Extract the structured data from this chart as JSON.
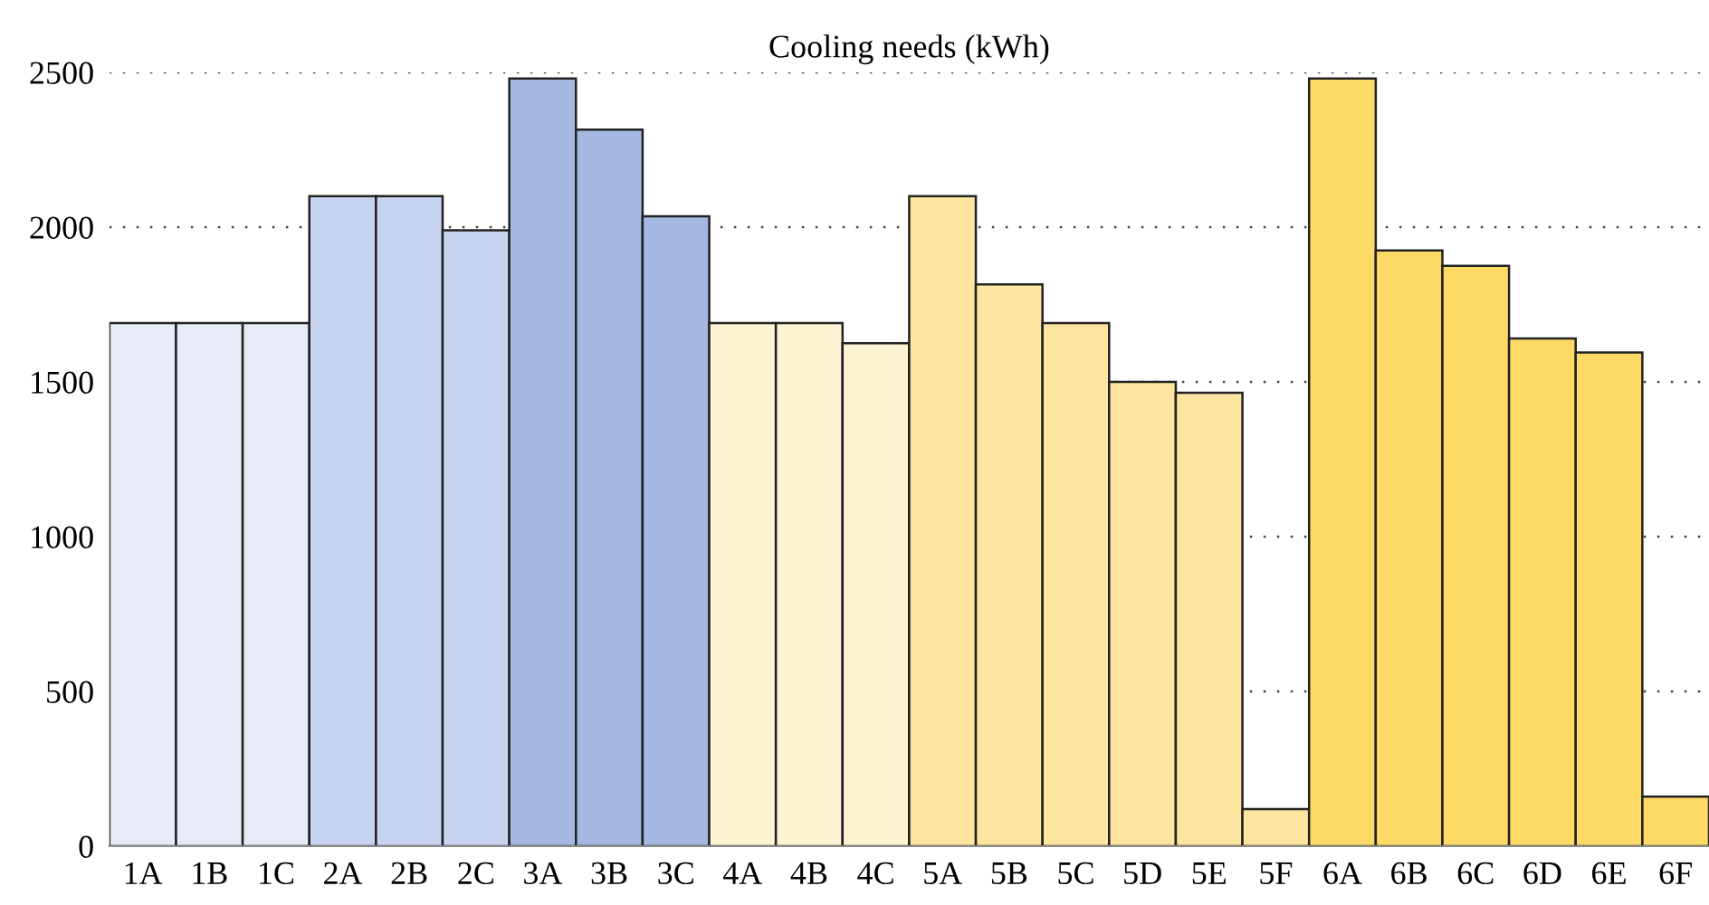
{
  "chart_data": {
    "type": "bar",
    "title": "Cooling needs (kWh)",
    "categories": [
      "1A",
      "1B",
      "1C",
      "2A",
      "2B",
      "2C",
      "3A",
      "3B",
      "3C",
      "4A",
      "4B",
      "4C",
      "5A",
      "5B",
      "5C",
      "5D",
      "5E",
      "5F",
      "6A",
      "6B",
      "6C",
      "6D",
      "6E",
      "6F"
    ],
    "values": [
      1690,
      1690,
      1690,
      2100,
      2100,
      1990,
      2480,
      2315,
      2035,
      1690,
      1690,
      1625,
      2100,
      1815,
      1690,
      1500,
      1465,
      120,
      2480,
      1925,
      1875,
      1640,
      1595,
      160
    ],
    "colors": [
      "#e6ebf7",
      "#e6ebf7",
      "#e6ebf7",
      "#c8d5f0",
      "#c8d5f0",
      "#c8d5f0",
      "#a5b8e2",
      "#a5b8e2",
      "#a5b8e2",
      "#fdf3d3",
      "#fdf3d3",
      "#fdf3d3",
      "#fde59f",
      "#fde59f",
      "#fde59f",
      "#fde59f",
      "#fde59f",
      "#fde59f",
      "#fdd966",
      "#fdd966",
      "#fdd966",
      "#fdd966",
      "#fdd966",
      "#fdd966"
    ],
    "ylim": [
      0,
      2500
    ],
    "yticks": [
      0,
      500,
      1000,
      1500,
      2000,
      2500
    ],
    "grid": "y",
    "line_style": "dotted"
  }
}
